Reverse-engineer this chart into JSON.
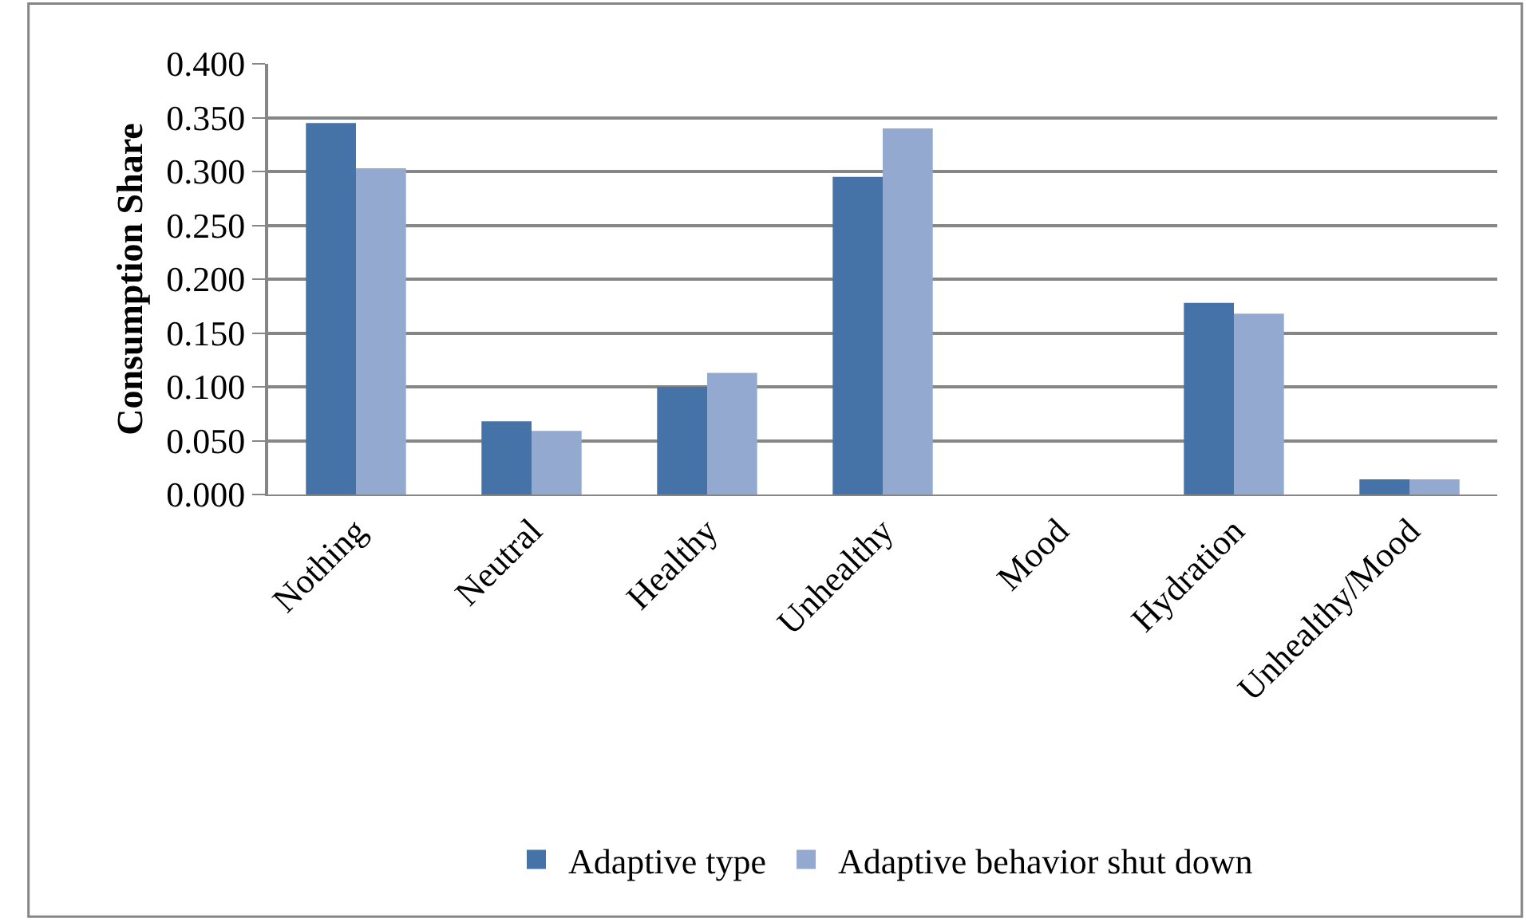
{
  "chart_data": {
    "type": "bar",
    "ylabel": "Consumption Share",
    "categories": [
      "Nothing",
      "Neutral",
      "Healthy",
      "Unhealthy",
      "Mood",
      "Hydration",
      "Unhealthy/Mood"
    ],
    "series": [
      {
        "name": "Adaptive type",
        "color": "#4572a7",
        "values": [
          0.345,
          0.068,
          0.1,
          0.295,
          0,
          0.178,
          0.014
        ]
      },
      {
        "name": "Adaptive behavior shut down",
        "color": "#94a9d0",
        "values": [
          0.303,
          0.059,
          0.113,
          0.34,
          0,
          0.168,
          0.014
        ]
      }
    ],
    "ylim": [
      0,
      0.4
    ],
    "yticks": [
      {
        "value": 0,
        "label": "0.000"
      },
      {
        "value": 0.05,
        "label": "0.050"
      },
      {
        "value": 0.1,
        "label": "0.100"
      },
      {
        "value": 0.15,
        "label": "0.150"
      },
      {
        "value": 0.2,
        "label": "0.200"
      },
      {
        "value": 0.25,
        "label": "0.250"
      },
      {
        "value": 0.3,
        "label": "0.300"
      },
      {
        "value": 0.35,
        "label": "0.350"
      },
      {
        "value": 0.4,
        "label": "0.400"
      }
    ],
    "grid": "y",
    "legend": "bottom"
  }
}
